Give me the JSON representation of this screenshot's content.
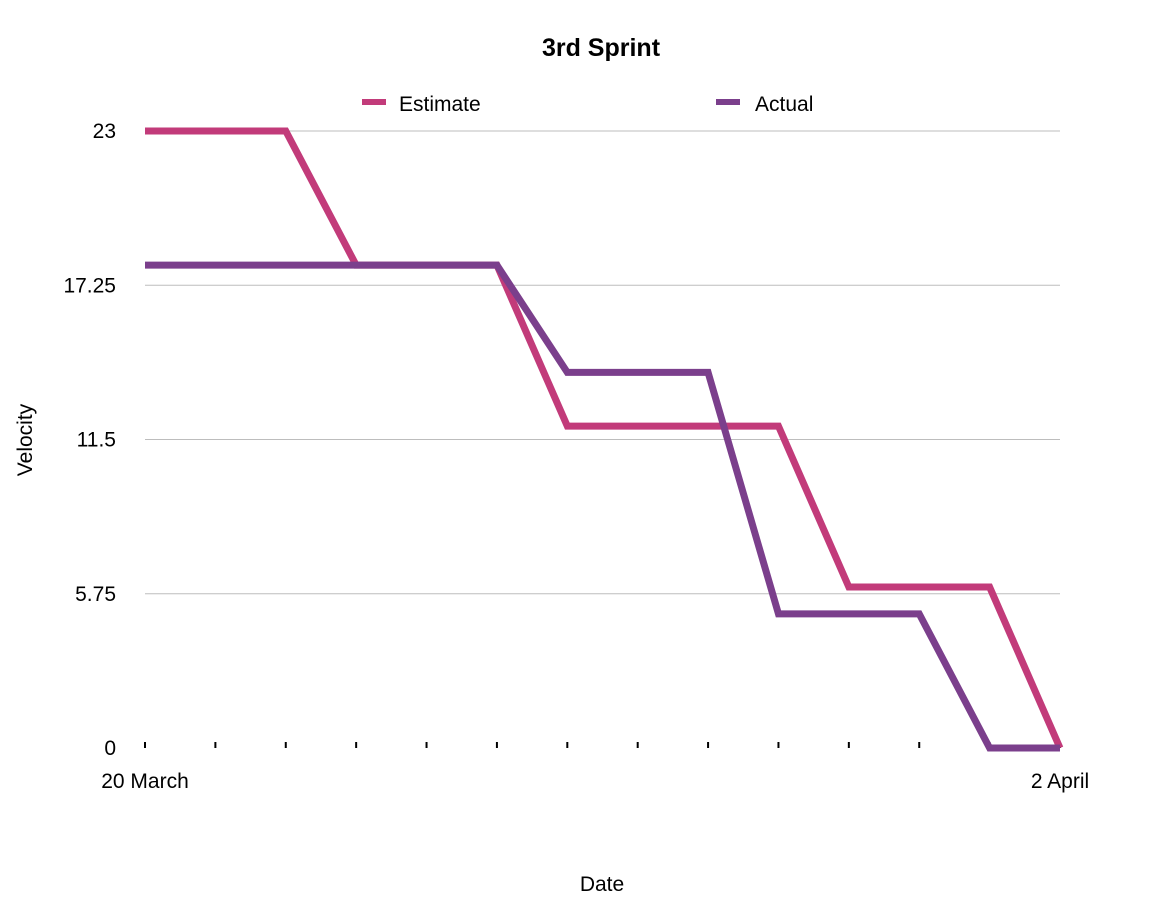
{
  "chart_data": {
    "type": "line",
    "title": "3rd Sprint",
    "xlabel": "Date",
    "ylabel": "Velocity",
    "x": [
      0,
      1,
      2,
      3,
      4,
      5,
      6,
      7,
      8,
      9,
      10,
      11,
      12,
      13
    ],
    "x_tick_labels": [
      {
        "x": 0,
        "label": "20 March"
      },
      {
        "x": 13,
        "label": "2 April"
      }
    ],
    "y_ticks": [
      0,
      5.75,
      11.5,
      17.25,
      23
    ],
    "y_tick_labels": [
      "0",
      "5.75",
      "11.5",
      "17.25",
      "23"
    ],
    "ylim": [
      0,
      23
    ],
    "grid": true,
    "legend_position": "top",
    "series": [
      {
        "name": "Estimate",
        "color": "#c23b7a",
        "values": [
          23,
          23,
          23,
          18,
          18,
          18,
          12,
          12,
          12,
          12,
          6,
          6,
          6,
          0
        ]
      },
      {
        "name": "Actual",
        "color": "#7b3f8c",
        "values": [
          18,
          18,
          18,
          18,
          18,
          18,
          14,
          14,
          14,
          5,
          5,
          5,
          0,
          0
        ]
      }
    ]
  }
}
